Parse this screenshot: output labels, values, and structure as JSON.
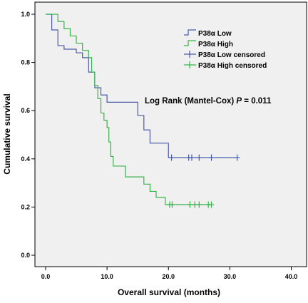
{
  "chart_data": {
    "type": "line",
    "xlabel": "Overall survival (months)",
    "ylabel": "Cumulative survival",
    "xlim": [
      0,
      40
    ],
    "ylim": [
      0,
      1.0
    ],
    "x_ticks": [
      "0.0",
      "10.0",
      "20.0",
      "30.0",
      "40.0"
    ],
    "y_ticks": [
      "0.0",
      "0.2",
      "0.4",
      "0.6",
      "0.8",
      "1.0"
    ],
    "legend": {
      "position": "top-right",
      "entries": [
        "P38α Low",
        "P38α High",
        "P38α Low censored",
        "P38α High censored"
      ]
    },
    "annotation": {
      "text": "Log Rank (Mantel-Cox) ",
      "p_symbol": "P",
      "p_value": " = 0.011"
    },
    "colors": {
      "low": "#4a5aa8",
      "high": "#37b34a",
      "plot_bg": "#f0f0f0"
    },
    "series": [
      {
        "name": "P38α Low",
        "steps": [
          [
            0,
            1.0
          ],
          [
            1.0,
            0.935
          ],
          [
            2.0,
            0.87
          ],
          [
            3.0,
            0.855
          ],
          [
            5.0,
            0.84
          ],
          [
            6.0,
            0.82
          ],
          [
            7.0,
            0.76
          ],
          [
            8.0,
            0.695
          ],
          [
            9.0,
            0.665
          ],
          [
            10.0,
            0.635
          ],
          [
            15.0,
            0.58
          ],
          [
            16.0,
            0.52
          ],
          [
            17.0,
            0.465
          ],
          [
            20.0,
            0.405
          ],
          [
            31.2,
            0.405
          ]
        ],
        "censored": [
          20.5,
          23.3,
          23.8,
          25.0,
          27.0,
          31.2
        ],
        "censored_y": 0.405
      },
      {
        "name": "P38α High",
        "steps": [
          [
            0,
            1.0
          ],
          [
            2.0,
            0.97
          ],
          [
            3.0,
            0.94
          ],
          [
            4.0,
            0.91
          ],
          [
            5.0,
            0.88
          ],
          [
            6.0,
            0.85
          ],
          [
            7.0,
            0.82
          ],
          [
            7.5,
            0.76
          ],
          [
            8.0,
            0.705
          ],
          [
            8.5,
            0.65
          ],
          [
            9.0,
            0.59
          ],
          [
            9.5,
            0.56
          ],
          [
            10.0,
            0.53
          ],
          [
            10.3,
            0.47
          ],
          [
            10.6,
            0.41
          ],
          [
            11.0,
            0.37
          ],
          [
            13.0,
            0.325
          ],
          [
            16.0,
            0.295
          ],
          [
            17.0,
            0.265
          ],
          [
            18.0,
            0.24
          ],
          [
            19.5,
            0.21
          ],
          [
            27.0,
            0.21
          ]
        ],
        "censored": [
          20.2,
          20.6,
          23.5,
          24.3,
          25.0,
          26.5,
          27.0
        ],
        "censored_y": 0.21
      }
    ]
  }
}
